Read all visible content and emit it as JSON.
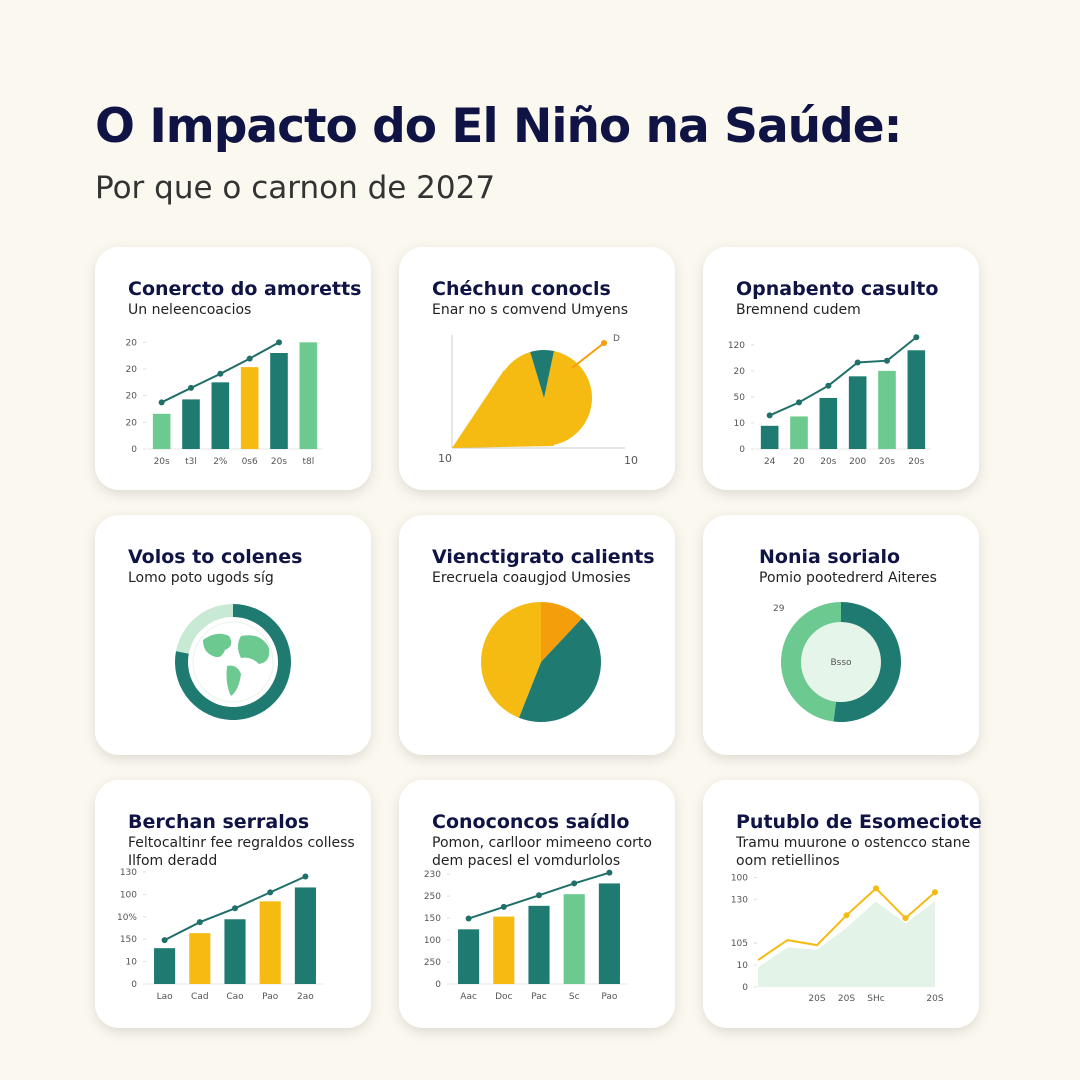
{
  "header": {
    "title": "O Impacto do El Niño na Saúde:",
    "subtitle": "Por que o carnon de 2027"
  },
  "chart_data": [
    {
      "type": "bar",
      "title": "Conercto do amoretts",
      "subtitle": [
        "Un neleencoacios"
      ],
      "categories": [
        "20s",
        "t3l",
        "2%",
        "0s6",
        "20s",
        "t8l"
      ],
      "values": [
        1.32,
        1.86,
        2.5,
        3.07,
        3.6,
        4.0
      ],
      "colors": [
        "#6cc98f",
        "#1f7a72",
        "#1f7a72",
        "#f5bb12",
        "#1f7a72",
        "#6cc98f"
      ],
      "line_values": [
        1.75,
        2.29,
        2.82,
        3.39,
        4.0,
        null
      ],
      "line_color": "#1f6f6a",
      "ylim": [
        0,
        4.2
      ],
      "yticks": [
        0,
        {
          "value": 1,
          "label": "20"
        },
        {
          "value": 2,
          "label": "20"
        },
        {
          "value": 3,
          "label": "20"
        },
        {
          "value": 4,
          "label": "20"
        }
      ]
    },
    {
      "type": "wedge",
      "title": "Chéchun conocls",
      "subtitle": [
        "Enar no s comvend Umyens"
      ],
      "values": [
        92,
        8
      ],
      "colors": [
        "#f5bb12",
        "#1f7a72"
      ],
      "axis_labels": [
        "10",
        "10"
      ],
      "annotation": "D",
      "annotation_color": "#f59e0b"
    },
    {
      "type": "bar",
      "title": "Opnabento casulto",
      "subtitle": [
        "Bremnend cudem"
      ],
      "categories": [
        "24",
        "20",
        "20s",
        "200",
        "20s",
        "20s"
      ],
      "values": [
        0.89,
        1.25,
        1.96,
        2.79,
        3.0,
        3.79
      ],
      "colors": [
        "#1f7a72",
        "#6cc98f",
        "#1f7a72",
        "#1f7a72",
        "#6cc98f",
        "#1f7a72"
      ],
      "line_values": [
        1.29,
        1.79,
        2.43,
        3.32,
        3.39,
        4.29
      ],
      "line_color": "#1f6f6a",
      "ylim": [
        0,
        4.3
      ],
      "yticks": [
        0,
        {
          "value": 1,
          "label": "10"
        },
        {
          "value": 2,
          "label": "50"
        },
        {
          "value": 3,
          "label": "20"
        },
        {
          "value": 4,
          "label": "120"
        }
      ]
    },
    {
      "type": "globe",
      "title": "Volos to colenes",
      "subtitle": [
        "Lomo poto ugods síg"
      ],
      "values": [
        78,
        22
      ],
      "colors": [
        "#1f7a72",
        "#c8ead5"
      ]
    },
    {
      "type": "pie",
      "title": "Vienctigrato calients",
      "subtitle": [
        "Erecruela coaugjod Umosies"
      ],
      "values": [
        12,
        44,
        44
      ],
      "colors": [
        "#f59e0b",
        "#1f7a72",
        "#f5bb12"
      ]
    },
    {
      "type": "donut",
      "title": "Nonia sorialo",
      "subtitle": [
        "Pomio pootedrerd Aiteres"
      ],
      "values": [
        52,
        48
      ],
      "colors": [
        "#1f7a72",
        "#6cc98f"
      ],
      "center_label": "Bsso",
      "annotation": "29"
    },
    {
      "type": "bar",
      "title": "Berchan serralos",
      "subtitle": [
        "Feltocaltinr fee regraldos colless",
        "Ilfom deradd"
      ],
      "categories": [
        "Lao",
        "Cad",
        "Cao",
        "Pao",
        "2ao"
      ],
      "values": [
        1.6,
        2.27,
        2.89,
        3.69,
        4.31
      ],
      "colors": [
        "#1f7a72",
        "#f5bb12",
        "#1f7a72",
        "#f5bb12",
        "#1f7a72"
      ],
      "line_values": [
        1.96,
        2.76,
        3.38,
        4.09,
        4.8
      ],
      "line_color": "#1f6f6a",
      "ylim": [
        0,
        5
      ],
      "yticks": [
        0,
        {
          "value": 1,
          "label": "10"
        },
        {
          "value": 2,
          "label": "150"
        },
        {
          "value": 3,
          "label": "10%"
        },
        {
          "value": 4,
          "label": "100"
        },
        {
          "value": 5,
          "label": "130"
        }
      ]
    },
    {
      "type": "bar",
      "title": "Conoconcos saídlo",
      "subtitle": [
        "Pomon, carlloor mimeeno corto",
        "dem pacesl el vomdurlolos"
      ],
      "categories": [
        "Aac",
        "Doc",
        "Pac",
        "Sc",
        "Pao"
      ],
      "values": [
        2.49,
        3.07,
        3.56,
        4.09,
        4.58
      ],
      "colors": [
        "#1f7a72",
        "#f5bb12",
        "#1f7a72",
        "#6cc98f",
        "#1f7a72"
      ],
      "line_values": [
        2.98,
        3.51,
        4.04,
        4.58,
        5.07
      ],
      "line_color": "#1f6f6a",
      "ylim": [
        0,
        5.1
      ],
      "yticks": [
        0,
        {
          "value": 1,
          "label": "250"
        },
        {
          "value": 2,
          "label": "100"
        },
        {
          "value": 3,
          "label": "150"
        },
        {
          "value": 4,
          "label": "250"
        },
        {
          "value": 5,
          "label": "230"
        }
      ]
    },
    {
      "type": "area",
      "title": "Putublo de Esomeciote",
      "subtitle": [
        "Tramu muurone o ostencco stane",
        "oom retiellinos"
      ],
      "categories": [
        null,
        null,
        "20S",
        "20S",
        "SHc",
        null,
        "20S"
      ],
      "values": [
        1.23,
        2.14,
        1.91,
        3.27,
        4.5,
        3.14,
        4.32
      ],
      "area_values": [
        0.9,
        1.8,
        1.7,
        2.7,
        3.9,
        2.9,
        3.9
      ],
      "line_color": "#f5bb12",
      "area_color": "#e3f3e8",
      "ylim": [
        0,
        5.2
      ],
      "yticks": [
        0,
        {
          "value": 1,
          "label": "10"
        },
        {
          "value": 2,
          "label": "105"
        },
        {
          "value": 4,
          "label": "130"
        },
        {
          "value": 5,
          "label": "100"
        }
      ]
    }
  ]
}
